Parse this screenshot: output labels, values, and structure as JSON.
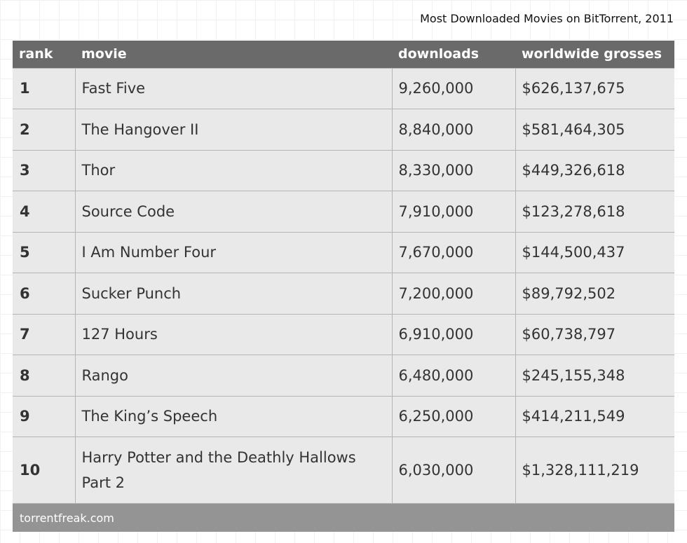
{
  "title": "Most Downloaded Movies on BitTorrent, 2011",
  "source": "torrentfreak.com",
  "chart_data": {
    "type": "table",
    "title": "Most Downloaded Movies on BitTorrent, 2011",
    "columns": [
      "rank",
      "movie",
      "downloads",
      "worldwide grosses"
    ],
    "rows": [
      {
        "rank": "1",
        "movie": "Fast Five",
        "downloads": "9,260,000",
        "gross": "$626,137,675"
      },
      {
        "rank": "2",
        "movie": "The Hangover II",
        "downloads": "8,840,000",
        "gross": "$581,464,305"
      },
      {
        "rank": "3",
        "movie": "Thor",
        "downloads": "8,330,000",
        "gross": "$449,326,618"
      },
      {
        "rank": "4",
        "movie": "Source Code",
        "downloads": "7,910,000",
        "gross": "$123,278,618"
      },
      {
        "rank": "5",
        "movie": "I Am Number Four",
        "downloads": "7,670,000",
        "gross": "$144,500,437"
      },
      {
        "rank": "6",
        "movie": "Sucker Punch",
        "downloads": "7,200,000",
        "gross": "$89,792,502"
      },
      {
        "rank": "7",
        "movie": "127 Hours",
        "downloads": "6,910,000",
        "gross": "$60,738,797"
      },
      {
        "rank": "8",
        "movie": "Rango",
        "downloads": "6,480,000",
        "gross": "$245,155,348"
      },
      {
        "rank": "9",
        "movie": "The King’s Speech",
        "downloads": "6,250,000",
        "gross": "$414,211,549"
      },
      {
        "rank": "10",
        "movie": "Harry Potter and the Deathly Hallows Part 2",
        "downloads": "6,030,000",
        "gross": "$1,328,111,219"
      }
    ]
  }
}
